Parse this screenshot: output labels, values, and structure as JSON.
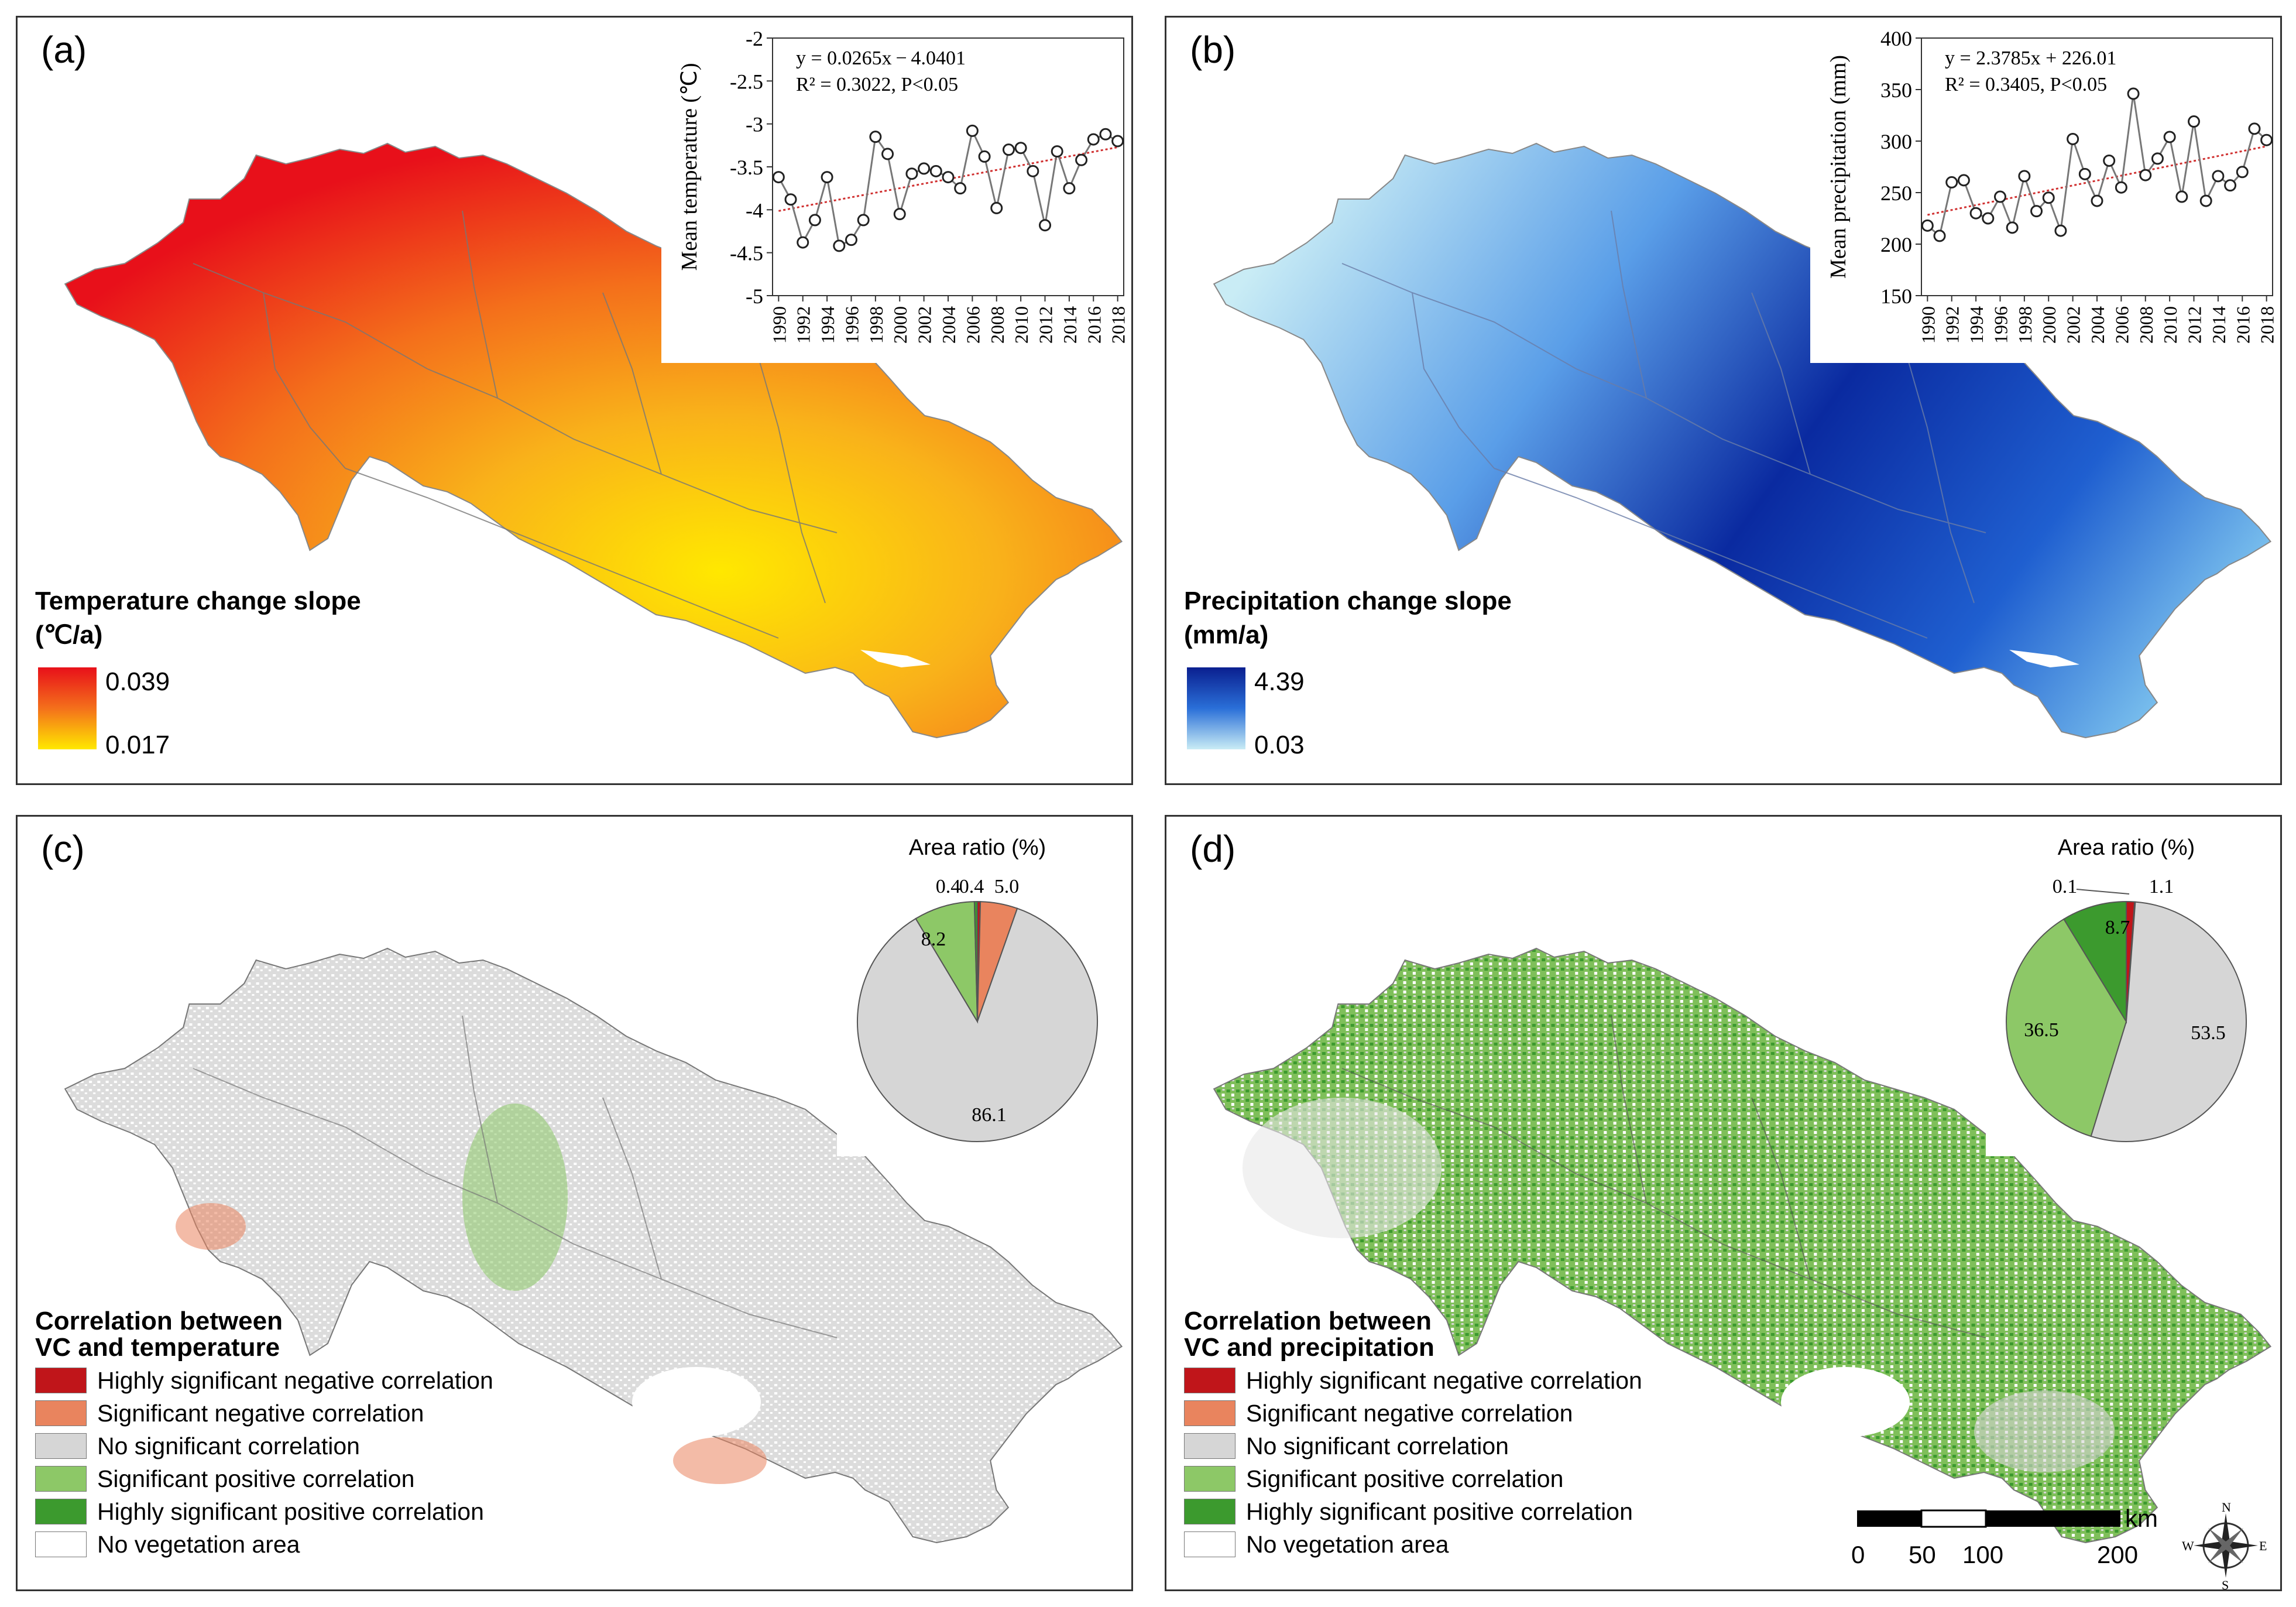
{
  "colors": {
    "temp_high": "#e8101a",
    "temp_mid": "#f4701b",
    "temp_low": "#ffe800",
    "prec_high": "#0a1f8f",
    "prec_mid": "#2a6fd8",
    "prec_low": "#c9ecf5",
    "cat_high_neg": "#c0151a",
    "cat_sig_neg": "#e9845e",
    "cat_no_sig": "#d6d6d6",
    "cat_sig_pos": "#8dc867",
    "cat_high_pos": "#3c9a2e",
    "cat_no_veg": "#ffffff"
  },
  "panels": {
    "a": {
      "label": "(a)",
      "legend_title_line1": "Temperature change slope",
      "legend_title_line2": "(℃/a)",
      "legend_max": "0.039",
      "legend_min": "0.017"
    },
    "b": {
      "label": "(b)",
      "legend_title_line1": "Precipitation change slope",
      "legend_title_line2": "(mm/a)",
      "legend_max": "4.39",
      "legend_min": "0.03"
    },
    "c": {
      "label": "(c)",
      "legend_title_line1": "Correlation between",
      "legend_title_line2": "VC and temperature"
    },
    "d": {
      "label": "(d)",
      "legend_title_line1": "Correlation between",
      "legend_title_line2": "VC and precipitation"
    }
  },
  "categories": [
    {
      "label": "Highly significant negative correlation",
      "color_key": "cat_high_neg"
    },
    {
      "label": "Significant negative correlation",
      "color_key": "cat_sig_neg"
    },
    {
      "label": "No significant correlation",
      "color_key": "cat_no_sig"
    },
    {
      "label": "Significant positive correlation",
      "color_key": "cat_sig_pos"
    },
    {
      "label": "Highly significant positive correlation",
      "color_key": "cat_high_pos"
    },
    {
      "label": "No vegetation area",
      "color_key": "cat_no_veg"
    }
  ],
  "scale": {
    "unit": "km",
    "ticks": [
      "0",
      "50",
      "100",
      "200"
    ]
  },
  "compass": {
    "n": "N",
    "s": "S",
    "e": "E",
    "w": "W"
  },
  "chart_data": [
    {
      "id": "a-inset",
      "type": "line",
      "title": "",
      "xlabel": "",
      "ylabel": "Mean temperature (℃)",
      "x": [
        1990,
        1991,
        1992,
        1993,
        1994,
        1995,
        1996,
        1997,
        1998,
        1999,
        2000,
        2001,
        2002,
        2003,
        2004,
        2005,
        2006,
        2007,
        2008,
        2009,
        2010,
        2011,
        2012,
        2013,
        2014,
        2015,
        2016,
        2017,
        2018
      ],
      "series": [
        {
          "values": [
            -3.62,
            -3.88,
            -4.38,
            -4.12,
            -3.62,
            -4.42,
            -4.35,
            -4.12,
            -3.15,
            -3.35,
            -4.05,
            -3.58,
            -3.52,
            -3.55,
            -3.62,
            -3.75,
            -3.08,
            -3.38,
            -3.98,
            -3.3,
            -3.28,
            -3.55,
            -4.18,
            -3.32,
            -3.75,
            -3.42,
            -3.18,
            -3.12,
            -3.2
          ]
        }
      ],
      "xticks": [
        "1990",
        "1992",
        "1994",
        "1996",
        "1998",
        "2000",
        "2002",
        "2004",
        "2006",
        "2008",
        "2010",
        "2012",
        "2014",
        "2016",
        "2018"
      ],
      "yticks": [
        "-5",
        "-4.5",
        "-4",
        "-3.5",
        "-3",
        "-2.5",
        "-2"
      ],
      "ylim": [
        -5,
        -2
      ],
      "xlim": [
        1989.5,
        2018.5
      ],
      "trend": {
        "slope": 0.0265,
        "intercept": -4.0401
      },
      "equation": "y = 0.0265x − 4.0401",
      "r2_text": "R² = 0.3022, P<0.05"
    },
    {
      "id": "b-inset",
      "type": "line",
      "title": "",
      "xlabel": "",
      "ylabel": "Mean precipitation (mm)",
      "x": [
        1990,
        1991,
        1992,
        1993,
        1994,
        1995,
        1996,
        1997,
        1998,
        1999,
        2000,
        2001,
        2002,
        2003,
        2004,
        2005,
        2006,
        2007,
        2008,
        2009,
        2010,
        2011,
        2012,
        2013,
        2014,
        2015,
        2016,
        2017,
        2018
      ],
      "series": [
        {
          "values": [
            218,
            208,
            260,
            262,
            230,
            225,
            246,
            216,
            266,
            232,
            245,
            213,
            302,
            268,
            242,
            281,
            255,
            346,
            267,
            283,
            304,
            246,
            319,
            242,
            266,
            257,
            270,
            312,
            301
          ]
        }
      ],
      "xticks": [
        "1990",
        "1992",
        "1994",
        "1996",
        "1998",
        "2000",
        "2002",
        "2004",
        "2006",
        "2008",
        "2010",
        "2012",
        "2014",
        "2016",
        "2018"
      ],
      "yticks": [
        "150",
        "200",
        "250",
        "300",
        "350",
        "400"
      ],
      "ylim": [
        150,
        400
      ],
      "xlim": [
        1989.5,
        2018.5
      ],
      "trend": {
        "slope": 2.3785,
        "intercept": 226.01
      },
      "equation": "y = 2.3785x + 226.01",
      "r2_text": "R² = 0.3405, P<0.05"
    },
    {
      "id": "c-pie",
      "type": "pie",
      "title": "Area ratio (%)",
      "slices": [
        {
          "label": "Highly significant negative correlation",
          "value": 0.4,
          "text": "0.4",
          "color_key": "cat_high_neg"
        },
        {
          "label": "Significant negative correlation",
          "value": 5.0,
          "text": "5.0",
          "color_key": "cat_sig_neg"
        },
        {
          "label": "No significant correlation",
          "value": 86.1,
          "text": "86.1",
          "color_key": "cat_no_sig"
        },
        {
          "label": "Significant positive correlation",
          "value": 8.2,
          "text": "8.2",
          "color_key": "cat_sig_pos"
        },
        {
          "label": "Highly significant positive correlation",
          "value": 0.4,
          "text": "0.4",
          "color_key": "cat_high_pos"
        }
      ]
    },
    {
      "id": "d-pie",
      "type": "pie",
      "title": "Area ratio (%)",
      "slices": [
        {
          "label": "Highly significant negative correlation",
          "value": 1.1,
          "text": "1.1",
          "color_key": "cat_high_neg"
        },
        {
          "label": "Significant negative correlation",
          "value": 0.1,
          "text": "",
          "color_key": "cat_sig_neg"
        },
        {
          "label": "No significant correlation",
          "value": 53.5,
          "text": "53.5",
          "color_key": "cat_no_sig"
        },
        {
          "label": "Significant positive correlation",
          "value": 36.5,
          "text": "36.5",
          "color_key": "cat_sig_pos"
        },
        {
          "label": "Highly significant positive correlation",
          "value": 8.7,
          "text": "8.7",
          "color_key": "cat_high_pos"
        }
      ],
      "extra_label": "0.1"
    }
  ]
}
